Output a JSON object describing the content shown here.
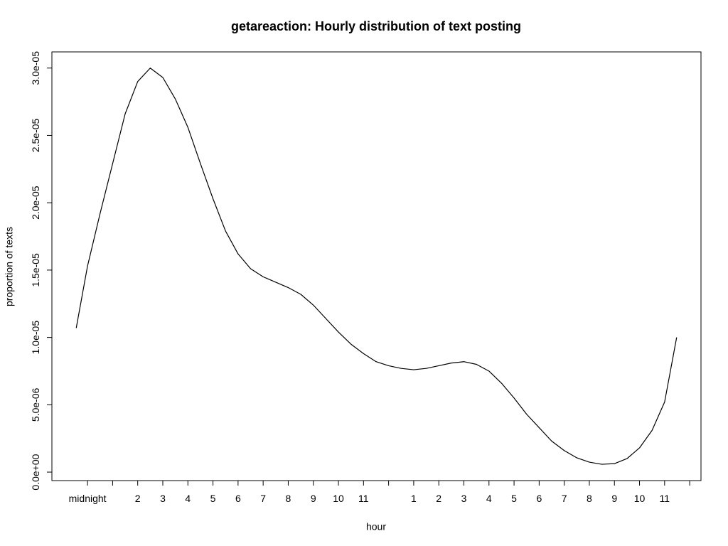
{
  "chart_data": {
    "type": "line",
    "title": "getareaction: Hourly distribution of text posting",
    "xlabel": "hour",
    "ylabel": "proportion of texts",
    "color": "#000000",
    "xlim": [
      -1.42,
      24.45
    ],
    "ylim": [
      -6.3e-07,
      3.12e-05
    ],
    "xticks": [
      {
        "value": 0,
        "label": "midnight"
      },
      {
        "value": 1,
        "label": null
      },
      2,
      3,
      4,
      5,
      6,
      7,
      8,
      9,
      10,
      11,
      {
        "value": 12,
        "label": null
      },
      {
        "value": 13,
        "label": "1"
      },
      {
        "value": 14,
        "label": "2"
      },
      {
        "value": 15,
        "label": "3"
      },
      {
        "value": 16,
        "label": "4"
      },
      {
        "value": 17,
        "label": "5"
      },
      {
        "value": 18,
        "label": "6"
      },
      {
        "value": 19,
        "label": "7"
      },
      {
        "value": 20,
        "label": "8"
      },
      {
        "value": 21,
        "label": "9"
      },
      {
        "value": 22,
        "label": "10"
      },
      {
        "value": 23,
        "label": "11"
      },
      {
        "value": 24,
        "label": null
      }
    ],
    "yticks": [
      {
        "value": 0,
        "label": "0.0e+00"
      },
      {
        "value": 5e-06,
        "label": "5.0e-06"
      },
      {
        "value": 1e-05,
        "label": "1.0e-05"
      },
      {
        "value": 1.5e-05,
        "label": "1.5e-05"
      },
      {
        "value": 2e-05,
        "label": "2.0e-05"
      },
      {
        "value": 2.5e-05,
        "label": "2.5e-05"
      },
      {
        "value": 3e-05,
        "label": "3.0e-05"
      }
    ],
    "x": [
      -0.45,
      0,
      0.5,
      1,
      1.5,
      2,
      2.5,
      3,
      3.5,
      4,
      4.5,
      5,
      5.5,
      6,
      6.5,
      7,
      7.5,
      8,
      8.5,
      9,
      9.5,
      10,
      10.5,
      11,
      11.5,
      12,
      12.5,
      13,
      13.5,
      14,
      14.5,
      15,
      15.5,
      16,
      16.5,
      17,
      17.5,
      18,
      18.5,
      19,
      19.5,
      20,
      20.5,
      21,
      21.5,
      22,
      22.5,
      23,
      23.48
    ],
    "values": [
      1.07e-05,
      1.53e-05,
      1.92e-05,
      2.29e-05,
      2.66e-05,
      2.9e-05,
      3e-05,
      2.93e-05,
      2.77e-05,
      2.56e-05,
      2.29e-05,
      2.03e-05,
      1.79e-05,
      1.62e-05,
      1.51e-05,
      1.45e-05,
      1.41e-05,
      1.37e-05,
      1.32e-05,
      1.24e-05,
      1.14e-05,
      1.04e-05,
      9.5e-06,
      8.8e-06,
      8.2e-06,
      7.9e-06,
      7.7e-06,
      7.6e-06,
      7.7e-06,
      7.9e-06,
      8.1e-06,
      8.2e-06,
      8e-06,
      7.5e-06,
      6.6e-06,
      5.5e-06,
      4.3e-06,
      3.3e-06,
      2.3e-06,
      1.6e-06,
      1.06e-06,
      7.4e-07,
      5.8e-07,
      6.3e-07,
      1e-06,
      1.8e-06,
      3.1e-06,
      5.2e-06,
      1e-05
    ]
  }
}
